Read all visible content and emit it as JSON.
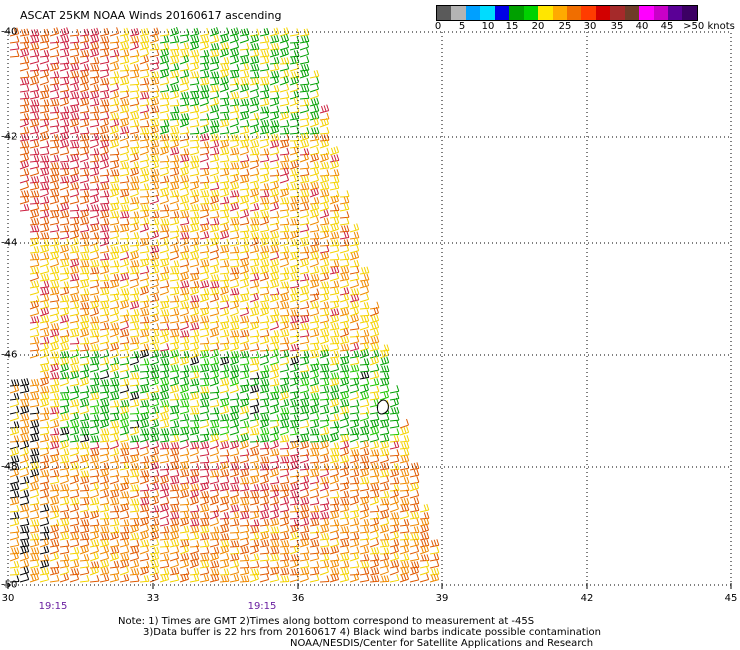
{
  "title": "ASCAT 25KM NOAA Winds 20160617 ascending",
  "legend": {
    "colors": [
      "#5a5a5a",
      "#b4b4b4",
      "#00a0ff",
      "#00dcff",
      "#0000e6",
      "#00a000",
      "#00d200",
      "#ffe600",
      "#ffaa00",
      "#f06e00",
      "#ff3c00",
      "#d20000",
      "#a52a2a",
      "#6e3c28",
      "#ff00ff",
      "#c800c8",
      "#5a0096",
      "#3c0064"
    ],
    "labels": [
      "0",
      "5",
      "10",
      "15",
      "20",
      "25",
      "30",
      "35",
      "40",
      "45",
      ">50 knots"
    ]
  },
  "lat_labels": [
    "-40",
    "-42",
    "-44",
    "-46",
    "-48",
    "-50"
  ],
  "lon_labels": [
    "30",
    "33",
    "36",
    "39",
    "42",
    "45"
  ],
  "time_labels": [
    "19:15",
    "19:15"
  ],
  "notes": {
    "line1": "Note: 1) Times are GMT 2)Times along bottom correspond to measurement at -45S",
    "line2": "3)Data buffer is 22 hrs from 20160617 4) Black wind barbs indicate possible contamination",
    "line3": "NOAA/NESDIS/Center for Satellite Applications and Research"
  },
  "map": {
    "lon_range": [
      30,
      45
    ],
    "lat_range": [
      -50,
      -40
    ],
    "wind_color_scale": {
      "yellow": "#f5d300",
      "orange": "#f08a00",
      "dark_orange": "#e05a00",
      "red": "#cc2040",
      "green": "#00a000",
      "light_green": "#20c800",
      "blue": "#0000e6",
      "black": "#000000"
    }
  }
}
